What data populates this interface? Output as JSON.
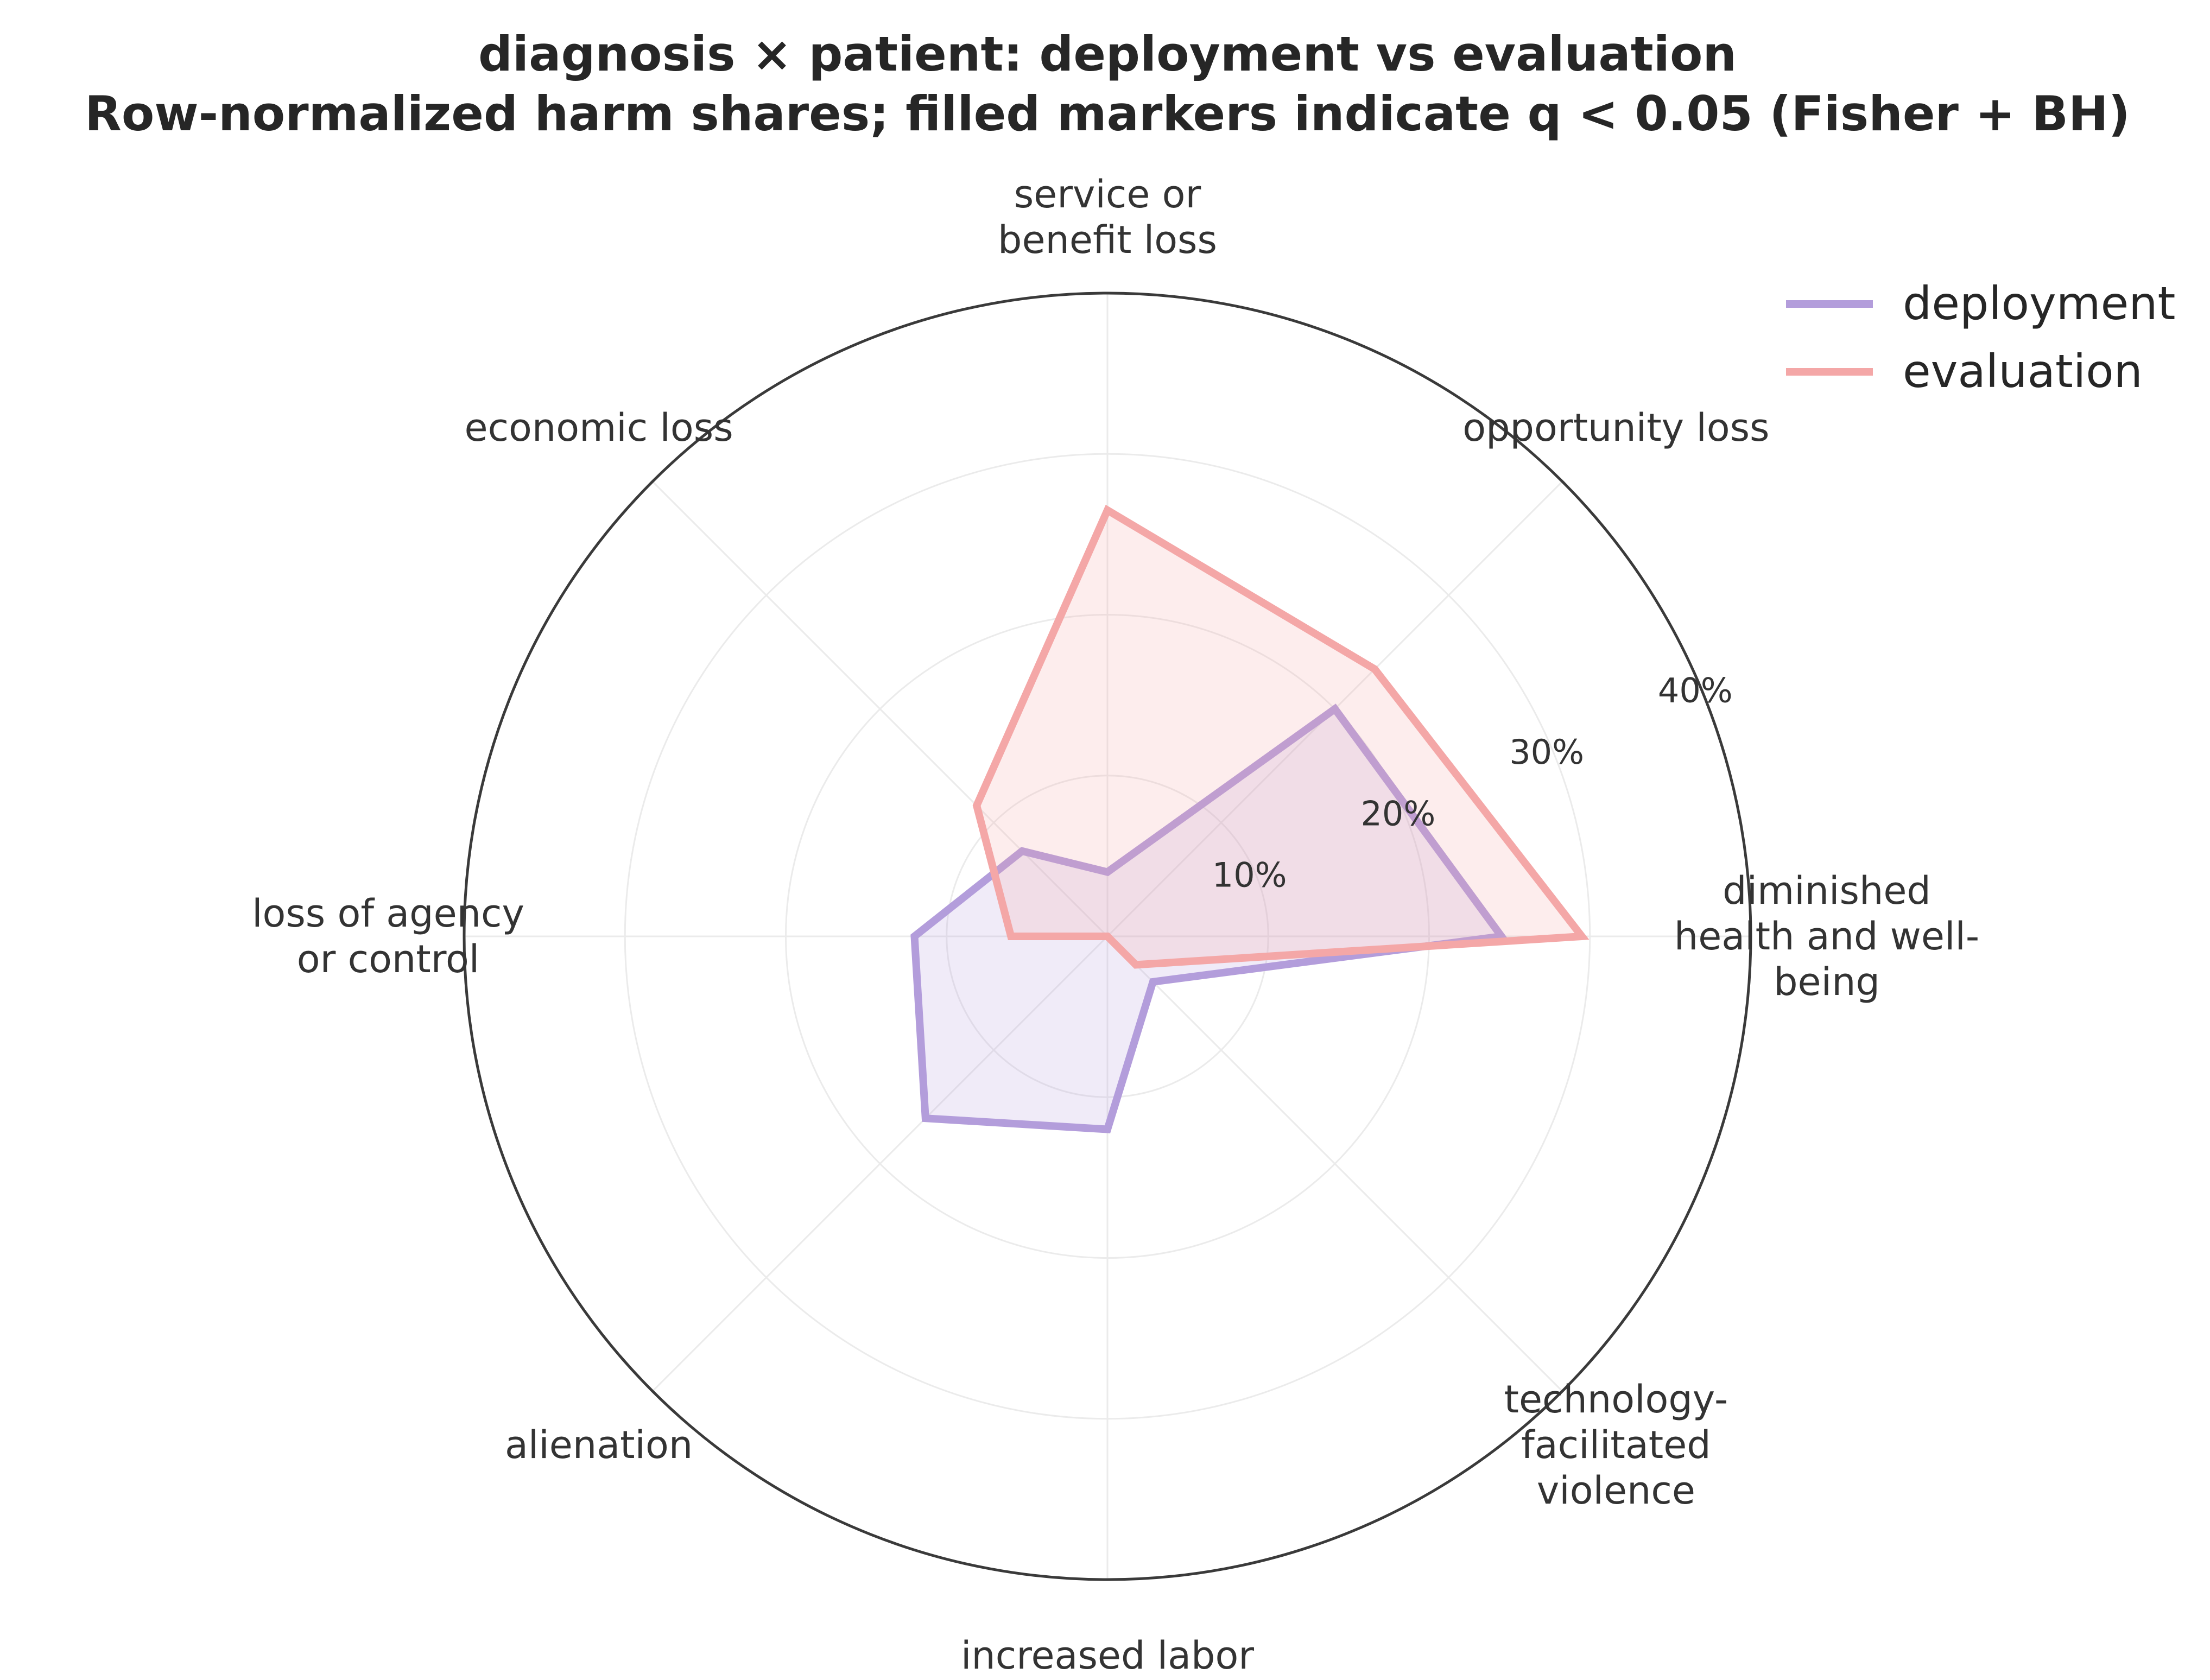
{
  "chart_data": {
    "type": "radar",
    "title_lines": [
      "diagnosis × patient: deployment vs evaluation",
      "Row-normalized harm shares; filled markers indicate q < 0.05 (Fisher + BH)"
    ],
    "categories": [
      "diminished health and well-being",
      "opportunity loss",
      "service or benefit loss",
      "economic loss",
      "loss of agency or control",
      "alienation",
      "increased labor",
      "technology-facilitated violence"
    ],
    "category_label_lines": [
      [
        "diminished",
        "health and well-",
        "being"
      ],
      [
        "opportunity loss"
      ],
      [
        "service or",
        "benefit loss"
      ],
      [
        "economic loss"
      ],
      [
        "loss of agency",
        "or control"
      ],
      [
        "alienation"
      ],
      [
        "increased labor"
      ],
      [
        "technology-",
        "facilitated",
        "violence"
      ]
    ],
    "series": [
      {
        "name": "deployment",
        "color": "#b39ddb",
        "values": [
          24.5,
          20.0,
          4.0,
          7.5,
          12.0,
          16.0,
          12.0,
          4.0
        ]
      },
      {
        "name": "evaluation",
        "color": "#f4a7a7",
        "values": [
          29.5,
          23.5,
          26.5,
          11.5,
          6.0,
          0.0,
          0.0,
          2.5
        ]
      }
    ],
    "rlim": [
      0,
      40
    ],
    "rticks": [
      10,
      20,
      30,
      40
    ],
    "rtick_labels": [
      "10%",
      "20%",
      "30%",
      "40%"
    ],
    "legend_position": "top-right",
    "grid": true
  }
}
